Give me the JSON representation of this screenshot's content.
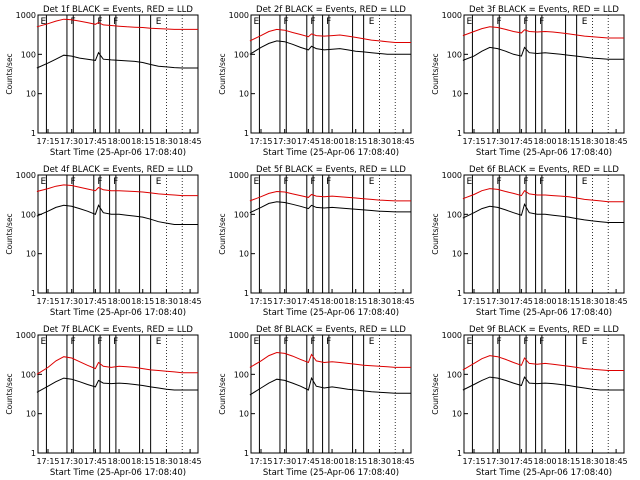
{
  "colors": {
    "events": "#000000",
    "lld": "#dd0000",
    "background": "#ffffff"
  },
  "chart_data": [
    {
      "type": "line",
      "title": "Det 1f BLACK = Events, RED = LLD",
      "xlabel": "Start Time (25-Apr-06 17:08:40)",
      "ylabel": "Counts/sec",
      "yscale": "log",
      "ylim": [
        1,
        1000
      ],
      "yticks": [
        "1",
        "10",
        "100",
        "1000"
      ],
      "xticks": [
        "17:15",
        "17:30",
        "17:45",
        "18:00",
        "18:15",
        "18:30",
        "18:45"
      ],
      "markers": [
        "E",
        "F",
        "F",
        "F",
        "E"
      ],
      "x": [
        "17:08",
        "17:15",
        "17:20",
        "17:25",
        "17:30",
        "17:35",
        "17:40",
        "17:45",
        "17:47",
        "17:50",
        "17:55",
        "18:00",
        "18:05",
        "18:10",
        "18:15",
        "18:20",
        "18:25",
        "18:30",
        "18:35",
        "18:40",
        "18:45",
        "18:50"
      ],
      "series": [
        {
          "name": "Events",
          "values": [
            45,
            60,
            75,
            95,
            90,
            80,
            75,
            70,
            110,
            75,
            72,
            70,
            68,
            66,
            62,
            55,
            50,
            48,
            46,
            45,
            45,
            45
          ]
        },
        {
          "name": "LLD",
          "values": [
            500,
            600,
            700,
            780,
            760,
            700,
            640,
            580,
            640,
            560,
            540,
            520,
            500,
            490,
            480,
            460,
            450,
            440,
            430,
            430,
            430,
            430
          ]
        }
      ]
    },
    {
      "type": "line",
      "title": "Det 2f BLACK = Events, RED = LLD",
      "xlabel": "Start Time (25-Apr-06 17:08:40)",
      "ylabel": "Counts/sec",
      "yscale": "log",
      "ylim": [
        1,
        1000
      ],
      "yticks": [
        "1",
        "10",
        "100",
        "1000"
      ],
      "xticks": [
        "17:15",
        "17:30",
        "17:45",
        "18:00",
        "18:15",
        "18:30",
        "18:45"
      ],
      "markers": [
        "E",
        "F",
        "F",
        "F",
        "E"
      ],
      "x": [
        "17:08",
        "17:15",
        "17:20",
        "17:25",
        "17:30",
        "17:35",
        "17:40",
        "17:45",
        "17:47",
        "17:50",
        "17:55",
        "18:00",
        "18:05",
        "18:10",
        "18:15",
        "18:20",
        "18:25",
        "18:30",
        "18:35",
        "18:40",
        "18:45",
        "18:50"
      ],
      "series": [
        {
          "name": "Events",
          "values": [
            100,
            150,
            190,
            220,
            210,
            180,
            150,
            130,
            160,
            140,
            130,
            135,
            140,
            130,
            120,
            115,
            110,
            105,
            100,
            100,
            100,
            100
          ]
        },
        {
          "name": "LLD",
          "values": [
            220,
            300,
            380,
            430,
            410,
            360,
            320,
            280,
            330,
            300,
            290,
            300,
            310,
            290,
            270,
            250,
            230,
            220,
            210,
            200,
            200,
            200
          ]
        }
      ]
    },
    {
      "type": "line",
      "title": "Det 3f BLACK = Events, RED = LLD",
      "xlabel": "Start Time (25-Apr-06 17:08:40)",
      "ylabel": "Counts/sec",
      "yscale": "log",
      "ylim": [
        1,
        1000
      ],
      "yticks": [
        "1",
        "10",
        "100",
        "1000"
      ],
      "xticks": [
        "17:15",
        "17:30",
        "17:45",
        "18:00",
        "18:15",
        "18:30",
        "18:45"
      ],
      "markers": [
        "E",
        "F",
        "F",
        "F",
        "E"
      ],
      "x": [
        "17:08",
        "17:15",
        "17:20",
        "17:25",
        "17:30",
        "17:35",
        "17:40",
        "17:45",
        "17:47",
        "17:50",
        "17:55",
        "18:00",
        "18:05",
        "18:10",
        "18:15",
        "18:20",
        "18:25",
        "18:30",
        "18:35",
        "18:40",
        "18:45",
        "18:50"
      ],
      "series": [
        {
          "name": "Events",
          "values": [
            70,
            90,
            120,
            150,
            140,
            120,
            100,
            90,
            150,
            110,
            105,
            110,
            105,
            100,
            95,
            90,
            85,
            80,
            78,
            75,
            75,
            75
          ]
        },
        {
          "name": "LLD",
          "values": [
            300,
            380,
            450,
            500,
            480,
            430,
            380,
            350,
            420,
            380,
            370,
            380,
            370,
            350,
            330,
            310,
            290,
            280,
            270,
            260,
            260,
            260
          ]
        }
      ]
    },
    {
      "type": "line",
      "title": "Det 4f BLACK = Events, RED = LLD",
      "xlabel": "Start Time (25-Apr-06 17:08:40)",
      "ylabel": "Counts/sec",
      "yscale": "log",
      "ylim": [
        1,
        1000
      ],
      "yticks": [
        "1",
        "10",
        "100",
        "1000"
      ],
      "xticks": [
        "17:15",
        "17:30",
        "17:45",
        "18:00",
        "18:15",
        "18:30",
        "18:45"
      ],
      "markers": [
        "E",
        "F",
        "F",
        "F",
        "E"
      ],
      "x": [
        "17:08",
        "17:15",
        "17:20",
        "17:25",
        "17:30",
        "17:35",
        "17:40",
        "17:45",
        "17:47",
        "17:50",
        "17:55",
        "18:00",
        "18:05",
        "18:10",
        "18:15",
        "18:20",
        "18:25",
        "18:30",
        "18:35",
        "18:40",
        "18:45",
        "18:50"
      ],
      "series": [
        {
          "name": "Events",
          "values": [
            90,
            120,
            150,
            170,
            160,
            140,
            120,
            100,
            170,
            110,
            100,
            100,
            95,
            90,
            85,
            75,
            65,
            60,
            55,
            55,
            55,
            55
          ]
        },
        {
          "name": "LLD",
          "values": [
            380,
            450,
            520,
            560,
            540,
            490,
            440,
            400,
            480,
            420,
            400,
            400,
            390,
            380,
            370,
            350,
            330,
            320,
            310,
            300,
            300,
            300
          ]
        }
      ]
    },
    {
      "type": "line",
      "title": "Det 5f BLACK = Events, RED = LLD",
      "xlabel": "Start Time (25-Apr-06 17:08:40)",
      "ylabel": "Counts/sec",
      "yscale": "log",
      "ylim": [
        1,
        1000
      ],
      "yticks": [
        "1",
        "10",
        "100",
        "1000"
      ],
      "xticks": [
        "17:15",
        "17:30",
        "17:45",
        "18:00",
        "18:15",
        "18:30",
        "18:45"
      ],
      "markers": [
        "E",
        "F",
        "F",
        "F",
        "E"
      ],
      "x": [
        "17:08",
        "17:15",
        "17:20",
        "17:25",
        "17:30",
        "17:35",
        "17:40",
        "17:45",
        "17:47",
        "17:50",
        "17:55",
        "18:00",
        "18:05",
        "18:10",
        "18:15",
        "18:20",
        "18:25",
        "18:30",
        "18:35",
        "18:40",
        "18:45",
        "18:50"
      ],
      "series": [
        {
          "name": "Events",
          "values": [
            110,
            150,
            190,
            210,
            200,
            180,
            160,
            140,
            170,
            150,
            145,
            150,
            145,
            140,
            135,
            130,
            125,
            120,
            118,
            115,
            115,
            115
          ]
        },
        {
          "name": "LLD",
          "values": [
            220,
            280,
            340,
            380,
            370,
            330,
            300,
            270,
            320,
            290,
            280,
            290,
            280,
            270,
            260,
            250,
            240,
            230,
            225,
            220,
            220,
            220
          ]
        }
      ]
    },
    {
      "type": "line",
      "title": "Det 6f BLACK = Events, RED = LLD",
      "xlabel": "Start Time (25-Apr-06 17:08:40)",
      "ylabel": "Counts/sec",
      "yscale": "log",
      "ylim": [
        1,
        1000
      ],
      "yticks": [
        "1",
        "10",
        "100",
        "1000"
      ],
      "xticks": [
        "17:15",
        "17:30",
        "17:45",
        "18:00",
        "18:15",
        "18:30",
        "18:45"
      ],
      "markers": [
        "E",
        "F",
        "F",
        "F",
        "E"
      ],
      "x": [
        "17:08",
        "17:15",
        "17:20",
        "17:25",
        "17:30",
        "17:35",
        "17:40",
        "17:45",
        "17:47",
        "17:50",
        "17:55",
        "18:00",
        "18:05",
        "18:10",
        "18:15",
        "18:20",
        "18:25",
        "18:30",
        "18:35",
        "18:40",
        "18:45",
        "18:50"
      ],
      "series": [
        {
          "name": "Events",
          "values": [
            80,
            110,
            140,
            160,
            150,
            130,
            110,
            95,
            180,
            110,
            100,
            100,
            95,
            90,
            85,
            78,
            72,
            68,
            65,
            62,
            62,
            62
          ]
        },
        {
          "name": "LLD",
          "values": [
            250,
            320,
            400,
            450,
            430,
            380,
            340,
            300,
            400,
            330,
            310,
            310,
            300,
            290,
            280,
            260,
            240,
            230,
            220,
            210,
            210,
            210
          ]
        }
      ]
    },
    {
      "type": "line",
      "title": "Det 7f BLACK = Events, RED = LLD",
      "xlabel": "Start Time (25-Apr-06 17:08:40)",
      "ylabel": "Counts/sec",
      "yscale": "log",
      "ylim": [
        1,
        1000
      ],
      "yticks": [
        "1",
        "10",
        "100",
        "1000"
      ],
      "xticks": [
        "17:15",
        "17:30",
        "17:45",
        "18:00",
        "18:15",
        "18:30",
        "18:45"
      ],
      "markers": [
        "E",
        "F",
        "F",
        "F",
        "E"
      ],
      "x": [
        "17:08",
        "17:15",
        "17:20",
        "17:25",
        "17:30",
        "17:35",
        "17:40",
        "17:45",
        "17:47",
        "17:50",
        "17:55",
        "18:00",
        "18:05",
        "18:10",
        "18:15",
        "18:20",
        "18:25",
        "18:30",
        "18:35",
        "18:40",
        "18:45",
        "18:50"
      ],
      "series": [
        {
          "name": "Events",
          "values": [
            35,
            50,
            65,
            80,
            75,
            65,
            55,
            48,
            70,
            60,
            58,
            60,
            58,
            55,
            52,
            48,
            45,
            42,
            40,
            40,
            40,
            40
          ]
        },
        {
          "name": "LLD",
          "values": [
            100,
            150,
            220,
            280,
            260,
            210,
            170,
            140,
            200,
            160,
            150,
            160,
            155,
            150,
            140,
            130,
            125,
            120,
            115,
            110,
            110,
            110
          ]
        }
      ]
    },
    {
      "type": "line",
      "title": "Det 8f BLACK = Events, RED = LLD",
      "xlabel": "Start Time (25-Apr-06 17:08:40)",
      "ylabel": "Counts/sec",
      "yscale": "log",
      "ylim": [
        1,
        1000
      ],
      "yticks": [
        "1",
        "10",
        "100",
        "1000"
      ],
      "xticks": [
        "17:15",
        "17:30",
        "17:45",
        "18:00",
        "18:15",
        "18:30",
        "18:45"
      ],
      "markers": [
        "E",
        "F",
        "F",
        "F",
        "E"
      ],
      "x": [
        "17:08",
        "17:15",
        "17:20",
        "17:25",
        "17:30",
        "17:35",
        "17:40",
        "17:45",
        "17:47",
        "17:50",
        "17:55",
        "18:00",
        "18:05",
        "18:10",
        "18:15",
        "18:20",
        "18:25",
        "18:30",
        "18:35",
        "18:40",
        "18:45",
        "18:50"
      ],
      "series": [
        {
          "name": "Events",
          "values": [
            30,
            45,
            60,
            75,
            70,
            60,
            50,
            40,
            80,
            50,
            45,
            48,
            45,
            42,
            40,
            38,
            36,
            35,
            34,
            33,
            33,
            33
          ]
        },
        {
          "name": "LLD",
          "values": [
            150,
            220,
            300,
            360,
            340,
            290,
            240,
            200,
            320,
            220,
            200,
            210,
            200,
            190,
            180,
            170,
            165,
            160,
            155,
            150,
            150,
            150
          ]
        }
      ]
    },
    {
      "type": "line",
      "title": "Det 9f BLACK = Events, RED = LLD",
      "xlabel": "Start Time (25-Apr-06 17:08:40)",
      "ylabel": "Counts/sec",
      "yscale": "log",
      "ylim": [
        1,
        1000
      ],
      "yticks": [
        "1",
        "10",
        "100",
        "1000"
      ],
      "xticks": [
        "17:15",
        "17:30",
        "17:45",
        "18:00",
        "18:15",
        "18:30",
        "18:45"
      ],
      "markers": [
        "E",
        "F",
        "F",
        "F",
        "E"
      ],
      "x": [
        "17:08",
        "17:15",
        "17:20",
        "17:25",
        "17:30",
        "17:35",
        "17:40",
        "17:45",
        "17:47",
        "17:50",
        "17:55",
        "18:00",
        "18:05",
        "18:10",
        "18:15",
        "18:20",
        "18:25",
        "18:30",
        "18:35",
        "18:40",
        "18:45",
        "18:50"
      ],
      "series": [
        {
          "name": "Events",
          "values": [
            40,
            55,
            70,
            85,
            80,
            70,
            60,
            52,
            85,
            60,
            58,
            60,
            58,
            55,
            52,
            48,
            45,
            42,
            40,
            40,
            40,
            40
          ]
        },
        {
          "name": "LLD",
          "values": [
            130,
            190,
            250,
            300,
            280,
            240,
            200,
            170,
            260,
            190,
            180,
            190,
            180,
            170,
            160,
            150,
            140,
            135,
            130,
            125,
            125,
            125
          ]
        }
      ]
    }
  ]
}
